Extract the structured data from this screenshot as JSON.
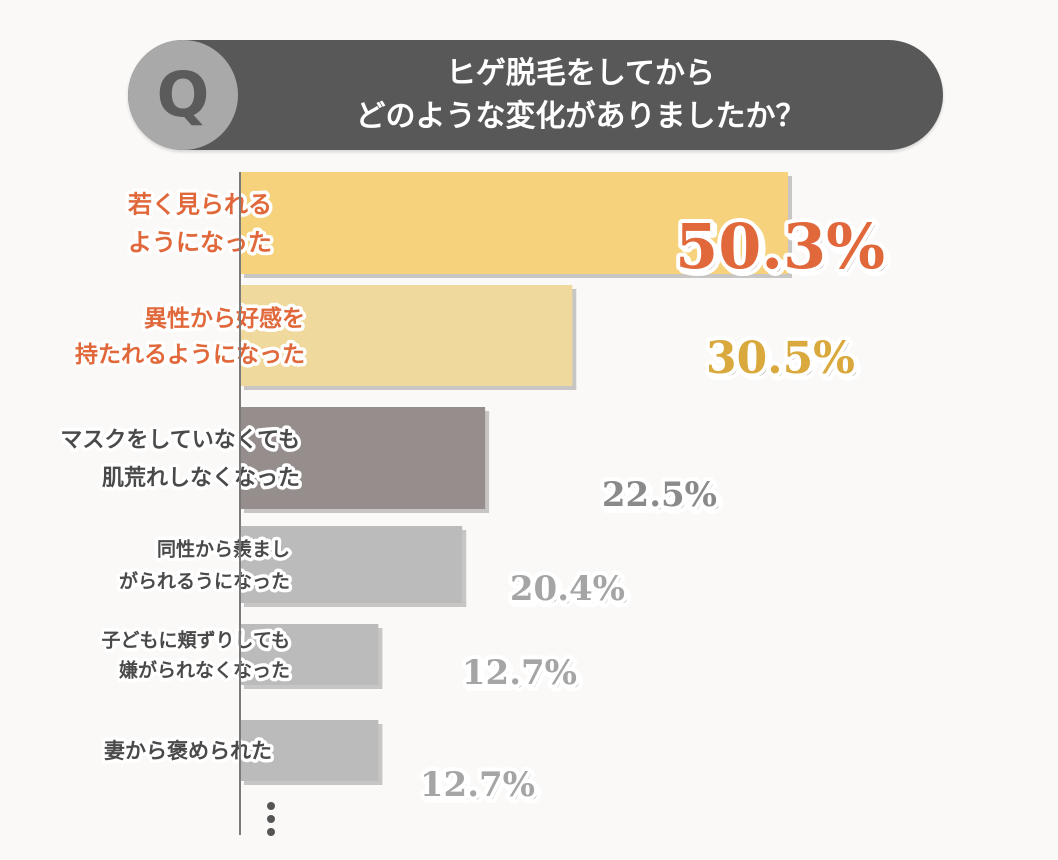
{
  "question": {
    "badge": "Q",
    "text": "ヒゲ脱毛をしてから\nどのような変化がありましたか？"
  },
  "chart_data": {
    "type": "bar",
    "orientation": "horizontal",
    "title": "ヒゲ脱毛をしてから どのような変化がありましたか？",
    "categories": [
      [
        "若く見られる",
        "ようになった"
      ],
      [
        "異性から好感を",
        "持たれるようになった"
      ],
      [
        "マスクをしていなくても",
        "肌荒れしなくなった"
      ],
      [
        "同性から羨まし",
        "がられるうになった"
      ],
      [
        "子どもに頬ずりしても",
        "嫌がられなくなった"
      ],
      [
        "妻から褒められた"
      ]
    ],
    "values": [
      50.3,
      30.5,
      22.5,
      20.4,
      12.7,
      12.7
    ],
    "value_labels": [
      "50.3%",
      "30.5%",
      "22.5%",
      "20.4%",
      "12.7%",
      "12.7%"
    ],
    "bar_colors": [
      "#f7d27c",
      "#f0d99c",
      "#968d8d",
      "#bbbbbb",
      "#bbbbbb",
      "#bbbbbb"
    ],
    "label_colors": [
      "#e0683a",
      "#e0683a",
      "#4a4a4a",
      "#4a4a4a",
      "#4a4a4a",
      "#4a4a4a"
    ],
    "value_colors": [
      "#e0683a",
      "#d9a93e",
      "#8a8a8a",
      "#a5a5a5",
      "#a5a5a5",
      "#a5a5a5"
    ],
    "xlim": [
      0,
      50.3
    ],
    "grid": false,
    "legend": "none",
    "continuation": "⋮"
  }
}
